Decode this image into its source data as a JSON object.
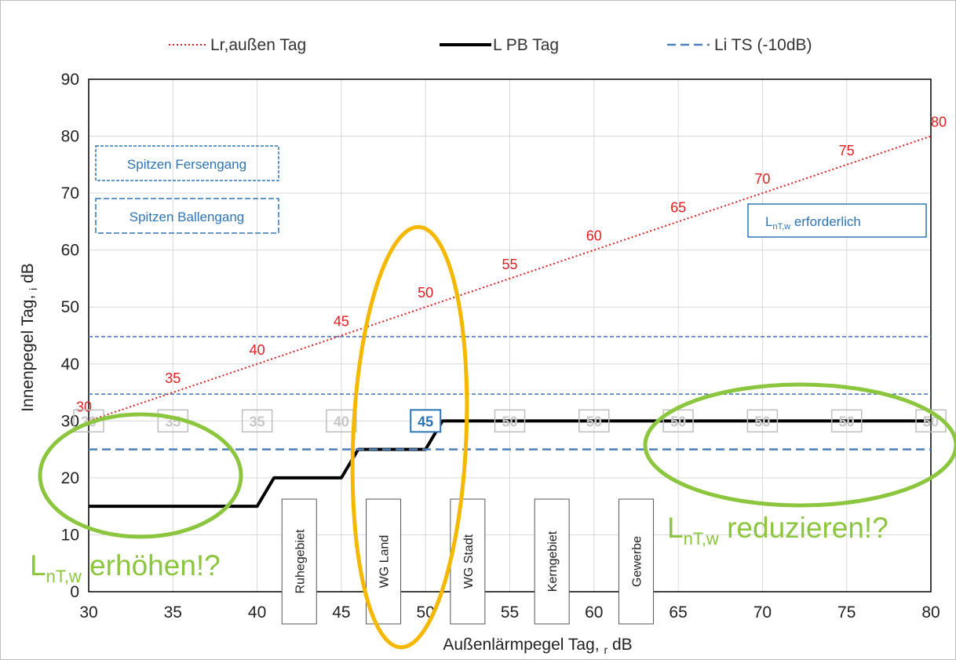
{
  "chart_data": {
    "type": "line",
    "xlabel": "Außenlärmpegel Tag, ",
    "xlabel_sub": "r",
    "xlabel_unit": " dB",
    "ylabel": "Innenpegel Tag, ",
    "ylabel_sub": "i",
    "ylabel_unit": " dB",
    "xlim": [
      30,
      80
    ],
    "ylim": [
      0,
      90
    ],
    "x_ticks": [
      30,
      35,
      40,
      45,
      50,
      55,
      60,
      65,
      70,
      75,
      80
    ],
    "y_ticks": [
      0,
      10,
      20,
      30,
      40,
      50,
      60,
      70,
      80,
      90
    ],
    "grid": true,
    "legend_position": "top",
    "series": [
      {
        "name": "Lr,außen Tag",
        "style": "dotted",
        "color": "#e02020",
        "x": [
          30,
          80
        ],
        "y": [
          30,
          80
        ],
        "point_labels": [
          {
            "x": 30,
            "y": 30,
            "label": "30"
          },
          {
            "x": 35,
            "y": 35,
            "label": "35"
          },
          {
            "x": 40,
            "y": 40,
            "label": "40"
          },
          {
            "x": 45,
            "y": 45,
            "label": "45"
          },
          {
            "x": 50,
            "y": 50,
            "label": "50"
          },
          {
            "x": 55,
            "y": 55,
            "label": "55"
          },
          {
            "x": 60,
            "y": 60,
            "label": "60"
          },
          {
            "x": 65,
            "y": 65,
            "label": "65"
          },
          {
            "x": 70,
            "y": 70,
            "label": "70"
          },
          {
            "x": 75,
            "y": 75,
            "label": "75"
          },
          {
            "x": 80,
            "y": 80,
            "label": "80"
          }
        ]
      },
      {
        "name": "L PB Tag",
        "style": "solid",
        "color": "#000000",
        "x": [
          30,
          40,
          41,
          45,
          46,
          50,
          51,
          80
        ],
        "y": [
          15,
          15,
          20,
          20,
          25,
          25,
          30,
          30
        ]
      },
      {
        "name": "Li TS (-10dB)",
        "style": "dashed",
        "color": "#4f81bd",
        "x": [
          30,
          80
        ],
        "y": [
          25,
          25
        ]
      }
    ],
    "reference_lines": [
      {
        "y": 44.8,
        "style": "dashed-thin",
        "color": "#4f81bd"
      },
      {
        "y": 34.7,
        "style": "dashed-thin",
        "color": "#4f81bd"
      }
    ],
    "step_value_boxes": [
      {
        "x": 30,
        "label": "30",
        "highlight": false
      },
      {
        "x": 35,
        "label": "35",
        "highlight": false
      },
      {
        "x": 40,
        "label": "35",
        "highlight": false
      },
      {
        "x": 45,
        "label": "40",
        "highlight": false
      },
      {
        "x": 50,
        "label": "45",
        "highlight": true
      },
      {
        "x": 55,
        "label": "50",
        "highlight": false
      },
      {
        "x": 60,
        "label": "50",
        "highlight": false
      },
      {
        "x": 65,
        "label": "50",
        "highlight": false
      },
      {
        "x": 70,
        "label": "50",
        "highlight": false
      },
      {
        "x": 75,
        "label": "50",
        "highlight": false
      },
      {
        "x": 80,
        "label": "50",
        "highlight": false
      }
    ],
    "zones": [
      {
        "x": 42.5,
        "label": "Ruhegebiet"
      },
      {
        "x": 47.5,
        "label": "WG Land"
      },
      {
        "x": 52.5,
        "label": "WG Stadt"
      },
      {
        "x": 57.5,
        "label": "Kerngebiet"
      },
      {
        "x": 62.5,
        "label": "Gewerbe"
      }
    ],
    "annotations": {
      "spitzen_fersengang": "Spitzen Fersengang",
      "spitzen_ballengang": "Spitzen Ballengang",
      "lntw_erforderlich": {
        "base": "L",
        "sub": "nT,w",
        "rest": " erforderlich"
      },
      "lntw_erhoehen": {
        "base": "L",
        "sub": "nT,w",
        "rest": " erhöhen!?"
      },
      "lntw_reduzieren": {
        "base": "L",
        "sub": "nT,w",
        "rest": " reduzieren!?"
      }
    },
    "colors": {
      "red": "#e02020",
      "black": "#000000",
      "blue": "#4f81bd",
      "box_blue": "#2e75b6",
      "green": "#8cc63f",
      "orange": "#f5b800",
      "grid": "#d9d9d9",
      "box_grey": "#bfbfbf"
    }
  }
}
